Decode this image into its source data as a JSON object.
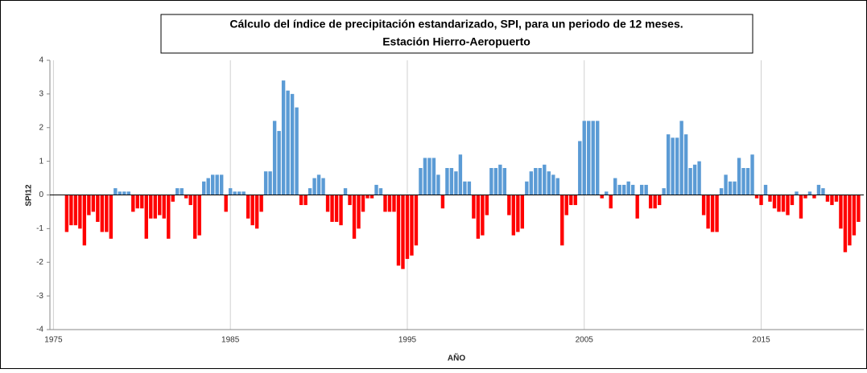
{
  "chart_data": {
    "type": "bar",
    "title": "Cálculo del índice de precipitación estandarizado, SPI, para un periodo de 12 meses.",
    "subtitle": "Estación Hierro-Aeropuerto",
    "x_label": "AÑO",
    "y_label": "SPI12",
    "positive_color": "#5b9bd5",
    "negative_color": "#ff0000",
    "grid": true,
    "xlim": [
      1974.8,
      2020.8
    ],
    "xticks": [
      1975,
      1985,
      1995,
      2005,
      2015
    ],
    "ylim": [
      -4,
      4
    ],
    "yticks": [
      -4,
      -3,
      -2,
      -1,
      0,
      1,
      2,
      3,
      4
    ],
    "x": [
      1975.75,
      1976,
      1976.25,
      1976.5,
      1976.75,
      1977,
      1977.25,
      1977.5,
      1977.75,
      1978,
      1978.25,
      1978.5,
      1978.75,
      1979,
      1979.25,
      1979.5,
      1979.75,
      1980,
      1980.25,
      1980.5,
      1980.75,
      1981,
      1981.25,
      1981.5,
      1981.75,
      1982,
      1982.25,
      1982.5,
      1982.75,
      1983,
      1983.25,
      1983.5,
      1983.75,
      1984,
      1984.25,
      1984.5,
      1984.75,
      1985,
      1985.25,
      1985.5,
      1985.75,
      1986,
      1986.25,
      1986.5,
      1986.75,
      1987,
      1987.25,
      1987.5,
      1987.75,
      1988,
      1988.25,
      1988.5,
      1988.75,
      1989,
      1989.25,
      1989.5,
      1989.75,
      1990,
      1990.25,
      1990.5,
      1990.75,
      1991,
      1991.25,
      1991.5,
      1991.75,
      1992,
      1992.25,
      1992.5,
      1992.75,
      1993,
      1993.25,
      1993.5,
      1993.75,
      1994,
      1994.25,
      1994.5,
      1994.75,
      1995,
      1995.25,
      1995.5,
      1995.75,
      1996,
      1996.25,
      1996.5,
      1996.75,
      1997,
      1997.25,
      1997.5,
      1997.75,
      1998,
      1998.25,
      1998.5,
      1998.75,
      1999,
      1999.25,
      1999.5,
      1999.75,
      2000,
      2000.25,
      2000.5,
      2000.75,
      2001,
      2001.25,
      2001.5,
      2001.75,
      2002,
      2002.25,
      2002.5,
      2002.75,
      2003,
      2003.25,
      2003.5,
      2003.75,
      2004,
      2004.25,
      2004.5,
      2004.75,
      2005,
      2005.25,
      2005.5,
      2005.75,
      2006,
      2006.25,
      2006.5,
      2006.75,
      2007,
      2007.25,
      2007.5,
      2007.75,
      2008,
      2008.25,
      2008.5,
      2008.75,
      2009,
      2009.25,
      2009.5,
      2009.75,
      2010,
      2010.25,
      2010.5,
      2010.75,
      2011,
      2011.25,
      2011.5,
      2011.75,
      2012,
      2012.25,
      2012.5,
      2012.75,
      2013,
      2013.25,
      2013.5,
      2013.75,
      2014,
      2014.25,
      2014.5,
      2014.75,
      2015,
      2015.25,
      2015.5,
      2015.75,
      2016,
      2016.25,
      2016.5,
      2016.75,
      2017,
      2017.25,
      2017.5,
      2017.75,
      2018,
      2018.25,
      2018.5,
      2018.75,
      2019,
      2019.25,
      2019.5,
      2019.75,
      2020,
      2020.25,
      2020.5
    ],
    "values": [
      -1.1,
      -0.9,
      -0.9,
      -1.0,
      -1.5,
      -0.6,
      -0.5,
      -0.8,
      -1.1,
      -1.1,
      -1.3,
      0.2,
      0.1,
      0.1,
      0.1,
      -0.5,
      -0.4,
      -0.4,
      -1.3,
      -0.7,
      -0.7,
      -0.6,
      -0.7,
      -1.3,
      -0.2,
      0.2,
      0.2,
      -0.1,
      -0.3,
      -1.3,
      -1.2,
      0.4,
      0.5,
      0.6,
      0.6,
      0.6,
      -0.5,
      0.2,
      0.1,
      0.1,
      0.1,
      -0.7,
      -0.9,
      -1.0,
      -0.5,
      0.7,
      0.7,
      2.2,
      1.9,
      3.4,
      3.1,
      3.0,
      2.6,
      -0.3,
      -0.3,
      0.2,
      0.5,
      0.6,
      0.5,
      -0.5,
      -0.8,
      -0.8,
      -0.9,
      0.2,
      -0.3,
      -1.3,
      -1.0,
      -0.5,
      -0.1,
      -0.1,
      0.3,
      0.2,
      -0.5,
      -0.5,
      -0.5,
      -2.1,
      -2.2,
      -1.9,
      -1.8,
      -1.5,
      0.8,
      1.1,
      1.1,
      1.1,
      0.6,
      -0.4,
      0.8,
      0.8,
      0.7,
      1.2,
      0.4,
      0.4,
      -0.7,
      -1.3,
      -1.2,
      -0.6,
      0.8,
      0.8,
      0.9,
      0.8,
      -0.6,
      -1.2,
      -1.1,
      -1.0,
      0.4,
      0.7,
      0.8,
      0.8,
      0.9,
      0.7,
      0.6,
      0.5,
      -1.5,
      -0.6,
      -0.3,
      -0.3,
      1.6,
      2.2,
      2.2,
      2.2,
      2.2,
      -0.1,
      0.1,
      -0.4,
      0.5,
      0.3,
      0.3,
      0.4,
      0.3,
      -0.7,
      0.3,
      0.3,
      -0.4,
      -0.4,
      -0.3,
      0.2,
      1.8,
      1.7,
      1.7,
      2.2,
      1.8,
      0.8,
      0.9,
      1.0,
      -0.6,
      -1.0,
      -1.1,
      -1.1,
      0.2,
      0.6,
      0.4,
      0.4,
      1.1,
      0.8,
      0.8,
      1.2,
      -0.1,
      -0.3,
      0.3,
      -0.2,
      -0.4,
      -0.5,
      -0.5,
      -0.6,
      -0.3,
      0.1,
      -0.7,
      -0.1,
      0.1,
      -0.1,
      0.3,
      0.2,
      -0.2,
      -0.3,
      -0.2,
      -1.0,
      -1.7,
      -1.5,
      -1.2,
      -0.8
    ]
  }
}
